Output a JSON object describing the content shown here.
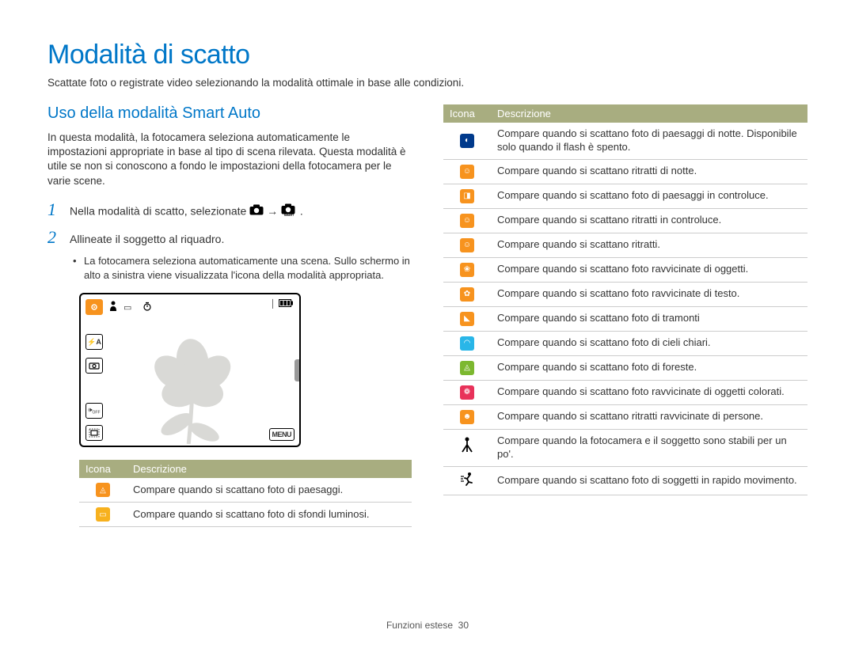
{
  "page": {
    "title": "Modalità di scatto",
    "subtitle": "Scattate foto o registrate video selezionando la modalità ottimale in base alle condizioni."
  },
  "left": {
    "section_title": "Uso della modalità Smart Auto",
    "intro": "In questa modalità, la fotocamera seleziona automaticamente le impostazioni appropriate in base al tipo di scena rilevata. Questa modalità è utile se non si conoscono a fondo le impostazioni della fotocamera per le varie scene.",
    "step1_num": "1",
    "step1_text_a": "Nella modalità di scatto, selezionate ",
    "step1_text_b": " → ",
    "step1_text_c": ".",
    "step2_num": "2",
    "step2_text": "Allineate il soggetto al riquadro.",
    "bullet": "La fotocamera seleziona automaticamente una scena. Sullo schermo in alto a sinistra viene visualizzata l'icona della modalità appropriata.",
    "table": {
      "h1": "Icona",
      "h2": "Descrizione",
      "rows": [
        {
          "color": "#f7931e",
          "glyph": "◬",
          "desc": "Compare quando si scattano foto di paesaggi."
        },
        {
          "color": "#f7b11e",
          "glyph": "▭",
          "desc": "Compare quando si scattano foto di sfondi luminosi."
        }
      ]
    },
    "preview": {
      "menu_label": "MENU"
    }
  },
  "right": {
    "table": {
      "h1": "Icona",
      "h2": "Descrizione",
      "rows": [
        {
          "color": "#003a8c",
          "glyph": "◐",
          "desc": "Compare quando si scattano foto di paesaggi di notte. Disponibile solo quando il flash è spento."
        },
        {
          "color": "#f7931e",
          "glyph": "☺",
          "desc": "Compare quando si scattano ritratti di notte."
        },
        {
          "color": "#f7931e",
          "glyph": "◨",
          "desc": "Compare quando si scattano foto di paesaggi in controluce."
        },
        {
          "color": "#f7931e",
          "glyph": "☺",
          "desc": "Compare quando si scattano ritratti in controluce."
        },
        {
          "color": "#f7931e",
          "glyph": "☺",
          "desc": "Compare quando si scattano ritratti."
        },
        {
          "color": "#f7931e",
          "glyph": "❀",
          "desc": "Compare quando si scattano foto ravvicinate di oggetti."
        },
        {
          "color": "#f7931e",
          "glyph": "✿",
          "desc": "Compare quando si scattano foto ravvicinate di testo."
        },
        {
          "color": "#f7931e",
          "glyph": "◣",
          "desc": "Compare quando si scattano foto di tramonti"
        },
        {
          "color": "#29b6e8",
          "glyph": "◠",
          "desc": "Compare quando si scattano foto di cieli chiari."
        },
        {
          "color": "#7cb82f",
          "glyph": "◬",
          "desc": "Compare quando si scattano foto di foreste."
        },
        {
          "color": "#e8325a",
          "glyph": "❁",
          "desc": "Compare quando si scattano foto ravvicinate di oggetti colorati."
        },
        {
          "color": "#f7931e",
          "glyph": "☻",
          "desc": "Compare quando si scattano ritratti ravvicinate di persone."
        },
        {
          "icon_type": "tripod",
          "desc": "Compare quando la fotocamera e il soggetto sono stabili per un po'."
        },
        {
          "icon_type": "motion",
          "desc": "Compare quando si scattano foto di soggetti in rapido movimento."
        }
      ]
    }
  },
  "footer": {
    "section": "Funzioni estese",
    "page_num": "30"
  }
}
